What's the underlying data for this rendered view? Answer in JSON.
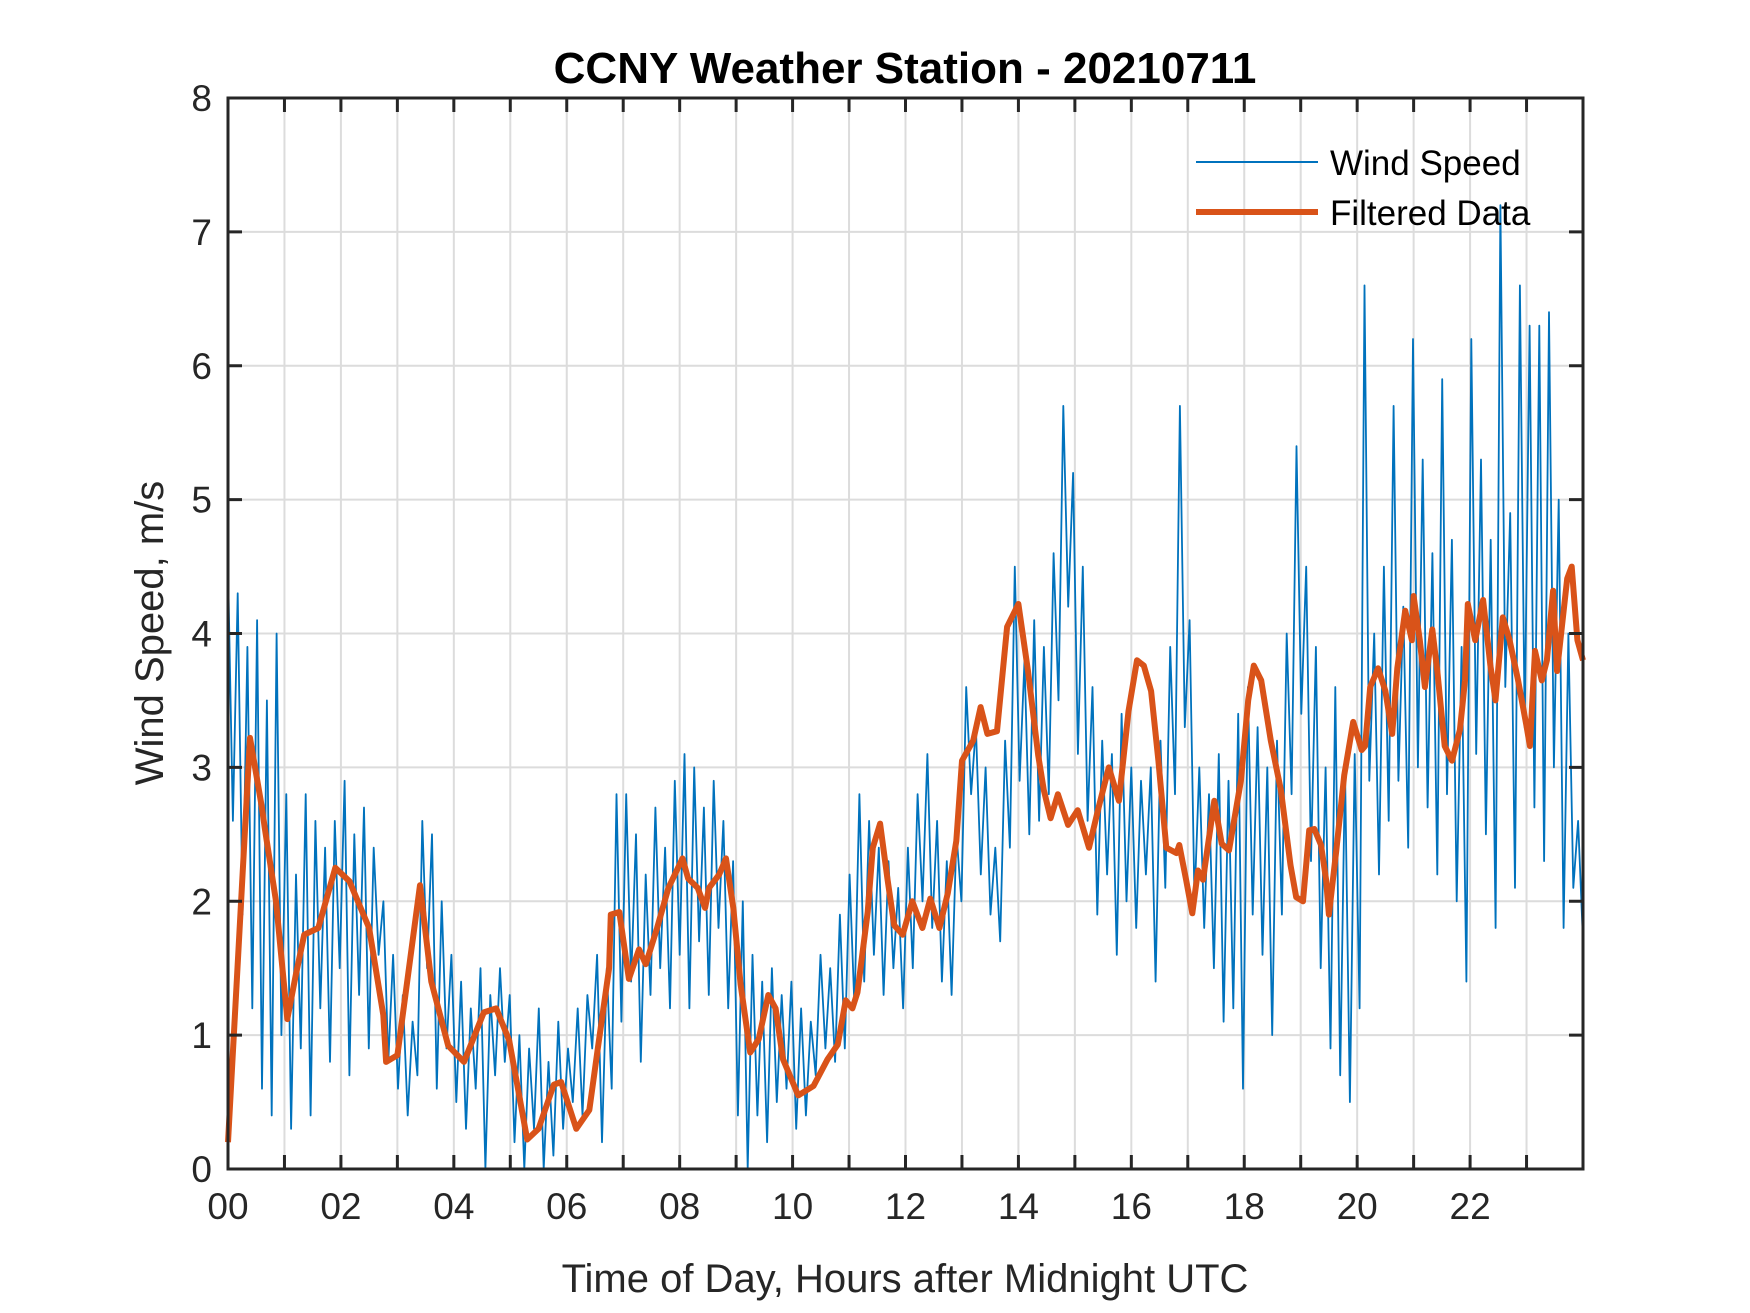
{
  "chart_data": {
    "type": "line",
    "title": "CCNY Weather Station - 20210711",
    "xlabel": "Time of Day, Hours after Midnight UTC",
    "ylabel": "Wind Speed, m/s",
    "xlim": [
      0,
      24
    ],
    "ylim": [
      0,
      8
    ],
    "grid": true,
    "x_gridlines_hours": [
      1,
      2,
      3,
      4,
      5,
      6,
      7,
      8,
      9,
      10,
      11,
      12,
      13,
      14,
      15,
      16,
      17,
      18,
      19,
      20,
      21,
      22,
      23
    ],
    "y_gridlines": [
      1,
      2,
      3,
      4,
      5,
      6,
      7
    ],
    "x_ticks": [
      {
        "value": 0,
        "label": "00"
      },
      {
        "value": 2,
        "label": "02"
      },
      {
        "value": 4,
        "label": "04"
      },
      {
        "value": 6,
        "label": "06"
      },
      {
        "value": 8,
        "label": "08"
      },
      {
        "value": 10,
        "label": "10"
      },
      {
        "value": 12,
        "label": "12"
      },
      {
        "value": 14,
        "label": "14"
      },
      {
        "value": 16,
        "label": "16"
      },
      {
        "value": 18,
        "label": "18"
      },
      {
        "value": 20,
        "label": "20"
      },
      {
        "value": 22,
        "label": "22"
      }
    ],
    "y_ticks": [
      {
        "value": 0,
        "label": "0"
      },
      {
        "value": 1,
        "label": "1"
      },
      {
        "value": 2,
        "label": "2"
      },
      {
        "value": 3,
        "label": "3"
      },
      {
        "value": 4,
        "label": "4"
      },
      {
        "value": 5,
        "label": "5"
      },
      {
        "value": 6,
        "label": "6"
      },
      {
        "value": 7,
        "label": "7"
      },
      {
        "value": 8,
        "label": "8"
      }
    ],
    "legend": {
      "position": "top-right",
      "entries": [
        {
          "name": "Wind Speed",
          "series": "wind_speed"
        },
        {
          "name": "Filtered Data",
          "series": "filtered"
        }
      ]
    },
    "series": [
      {
        "id": "wind_speed",
        "name": "Wind Speed",
        "color": "#0072BD",
        "x_start_hours": 0,
        "x_step_hours": 0.0833,
        "values": [
          4.5,
          2.6,
          4.3,
          1.9,
          3.9,
          1.2,
          4.1,
          0.6,
          3.5,
          0.4,
          4.0,
          1.0,
          2.8,
          0.3,
          2.2,
          0.9,
          2.8,
          0.4,
          2.6,
          1.2,
          2.4,
          0.8,
          2.6,
          1.5,
          2.9,
          0.7,
          2.5,
          1.3,
          2.7,
          0.9,
          2.4,
          1.6,
          2.0,
          0.8,
          1.6,
          0.6,
          1.3,
          0.4,
          1.1,
          0.7,
          2.6,
          1.5,
          2.5,
          0.6,
          2.0,
          0.9,
          1.6,
          0.5,
          1.4,
          0.3,
          1.2,
          0.6,
          1.5,
          0.0,
          1.3,
          0.7,
          1.5,
          0.8,
          1.3,
          0.2,
          1.0,
          0.0,
          0.9,
          0.3,
          1.2,
          0.0,
          0.8,
          0.1,
          1.1,
          0.3,
          0.9,
          0.5,
          1.2,
          0.4,
          1.3,
          0.9,
          1.6,
          0.2,
          1.5,
          0.6,
          2.8,
          1.1,
          2.8,
          1.4,
          2.5,
          0.8,
          2.2,
          1.3,
          2.7,
          1.5,
          2.4,
          1.2,
          2.9,
          1.6,
          3.1,
          1.2,
          3.0,
          1.7,
          2.7,
          1.3,
          2.9,
          1.8,
          2.6,
          1.2,
          2.3,
          0.4,
          2.0,
          0.0,
          1.6,
          0.4,
          1.4,
          0.2,
          1.5,
          0.5,
          1.3,
          0.6,
          1.4,
          0.3,
          1.2,
          0.4,
          1.1,
          0.7,
          1.6,
          0.9,
          1.5,
          0.8,
          1.9,
          0.9,
          2.2,
          1.2,
          2.8,
          1.4,
          2.6,
          1.6,
          2.4,
          1.3,
          2.3,
          1.5,
          2.1,
          1.2,
          2.4,
          1.5,
          2.8,
          2.0,
          3.1,
          1.8,
          2.6,
          1.4,
          2.3,
          1.3,
          2.5,
          2.0,
          3.6,
          2.8,
          3.3,
          2.2,
          3.0,
          1.9,
          2.4,
          1.7,
          3.2,
          2.4,
          4.5,
          2.9,
          3.8,
          2.5,
          4.1,
          2.6,
          3.9,
          2.8,
          4.6,
          3.5,
          5.7,
          4.2,
          5.2,
          3.1,
          4.5,
          2.6,
          3.6,
          1.9,
          3.2,
          2.2,
          3.1,
          1.6,
          3.4,
          2.0,
          3.0,
          1.8,
          2.9,
          2.2,
          3.0,
          1.4,
          3.2,
          2.1,
          3.9,
          2.8,
          5.7,
          3.3,
          4.1,
          2.0,
          3.0,
          1.8,
          2.8,
          1.5,
          3.1,
          1.1,
          2.9,
          1.2,
          3.4,
          0.6,
          3.6,
          1.9,
          3.3,
          1.6,
          3.0,
          1.0,
          3.2,
          1.9,
          4.0,
          2.8,
          5.4,
          3.4,
          4.5,
          2.3,
          3.9,
          1.5,
          3.0,
          0.9,
          3.6,
          0.7,
          3.0,
          0.5,
          3.1,
          1.2,
          6.6,
          2.9,
          4.0,
          2.2,
          4.5,
          2.6,
          5.7,
          2.9,
          4.2,
          2.4,
          6.2,
          3.0,
          5.3,
          2.7,
          4.6,
          2.2,
          5.9,
          2.8,
          4.7,
          2.0,
          3.9,
          1.4,
          6.2,
          3.1,
          5.3,
          2.5,
          4.7,
          1.8,
          7.2,
          3.6,
          4.9,
          2.1,
          6.6,
          3.3,
          6.3,
          2.7,
          6.3,
          2.3,
          6.4,
          3.0,
          5.0,
          1.8,
          4.0,
          2.1,
          2.6,
          1.7
        ]
      },
      {
        "id": "filtered",
        "name": "Filtered Data",
        "color": "#D95319",
        "x": [
          0.0,
          0.18,
          0.39,
          0.6,
          0.65,
          0.85,
          1.05,
          1.2,
          1.35,
          1.6,
          1.9,
          2.15,
          2.5,
          2.75,
          2.8,
          3.0,
          3.4,
          3.6,
          3.9,
          4.18,
          4.53,
          4.75,
          4.98,
          5.3,
          5.5,
          5.77,
          5.9,
          6.17,
          6.4,
          6.55,
          6.75,
          6.78,
          6.93,
          7.1,
          7.28,
          7.4,
          7.6,
          7.8,
          8.05,
          8.15,
          8.32,
          8.45,
          8.52,
          8.7,
          8.82,
          8.95,
          9.08,
          9.25,
          9.4,
          9.57,
          9.7,
          9.83,
          10.0,
          10.1,
          10.37,
          10.62,
          10.8,
          10.94,
          11.06,
          11.15,
          11.33,
          11.42,
          11.55,
          11.68,
          11.8,
          11.95,
          12.12,
          12.3,
          12.44,
          12.6,
          12.75,
          12.9,
          13.0,
          13.2,
          13.33,
          13.45,
          13.62,
          13.8,
          14.0,
          14.17,
          14.35,
          14.45,
          14.57,
          14.7,
          14.88,
          15.05,
          15.25,
          15.42,
          15.6,
          15.78,
          15.95,
          16.1,
          16.22,
          16.35,
          16.48,
          16.62,
          16.8,
          16.85,
          16.97,
          17.08,
          17.18,
          17.27,
          17.47,
          17.6,
          17.73,
          17.94,
          18.07,
          18.17,
          18.3,
          18.47,
          18.65,
          18.82,
          18.92,
          19.04,
          19.15,
          19.24,
          19.36,
          19.45,
          19.5,
          19.63,
          19.77,
          19.93,
          20.08,
          20.14,
          20.23,
          20.37,
          20.5,
          20.62,
          20.71,
          20.85,
          20.97,
          21.0,
          21.11,
          21.2,
          21.33,
          21.42,
          21.55,
          21.68,
          21.82,
          21.91,
          21.96,
          22.09,
          22.23,
          22.36,
          22.45,
          22.58,
          22.7,
          22.85,
          23.0,
          23.06,
          23.15,
          23.27,
          23.36,
          23.47,
          23.54,
          23.72,
          23.8,
          23.9,
          24.0
        ],
        "values": [
          0.2,
          1.6,
          3.22,
          2.7,
          2.55,
          2.0,
          1.12,
          1.45,
          1.75,
          1.8,
          2.25,
          2.15,
          1.8,
          1.15,
          0.8,
          0.85,
          2.12,
          1.4,
          0.92,
          0.8,
          1.17,
          1.2,
          0.96,
          0.22,
          0.3,
          0.63,
          0.65,
          0.3,
          0.44,
          0.9,
          1.5,
          1.9,
          1.92,
          1.42,
          1.64,
          1.53,
          1.8,
          2.1,
          2.32,
          2.17,
          2.1,
          1.95,
          2.1,
          2.2,
          2.32,
          1.95,
          1.38,
          0.87,
          0.97,
          1.3,
          1.2,
          0.82,
          0.65,
          0.55,
          0.62,
          0.82,
          0.93,
          1.26,
          1.2,
          1.32,
          1.92,
          2.4,
          2.58,
          2.17,
          1.82,
          1.75,
          2.0,
          1.8,
          2.02,
          1.8,
          2.06,
          2.45,
          3.05,
          3.2,
          3.45,
          3.25,
          3.27,
          4.05,
          4.22,
          3.72,
          3.09,
          2.83,
          2.62,
          2.8,
          2.57,
          2.68,
          2.4,
          2.7,
          3.0,
          2.75,
          3.42,
          3.8,
          3.76,
          3.57,
          3.05,
          2.4,
          2.36,
          2.42,
          2.16,
          1.91,
          2.23,
          2.16,
          2.75,
          2.43,
          2.38,
          2.9,
          3.5,
          3.76,
          3.65,
          3.2,
          2.83,
          2.27,
          2.03,
          2.0,
          2.53,
          2.54,
          2.42,
          2.16,
          1.9,
          2.38,
          2.94,
          3.34,
          3.13,
          3.16,
          3.6,
          3.74,
          3.57,
          3.25,
          3.74,
          4.17,
          3.95,
          4.28,
          3.95,
          3.6,
          4.03,
          3.72,
          3.16,
          3.05,
          3.28,
          3.65,
          4.22,
          3.95,
          4.25,
          3.76,
          3.5,
          4.12,
          3.95,
          3.65,
          3.31,
          3.16,
          3.87,
          3.65,
          3.8,
          4.32,
          3.72,
          4.41,
          4.5,
          3.95,
          3.8
        ]
      }
    ]
  }
}
